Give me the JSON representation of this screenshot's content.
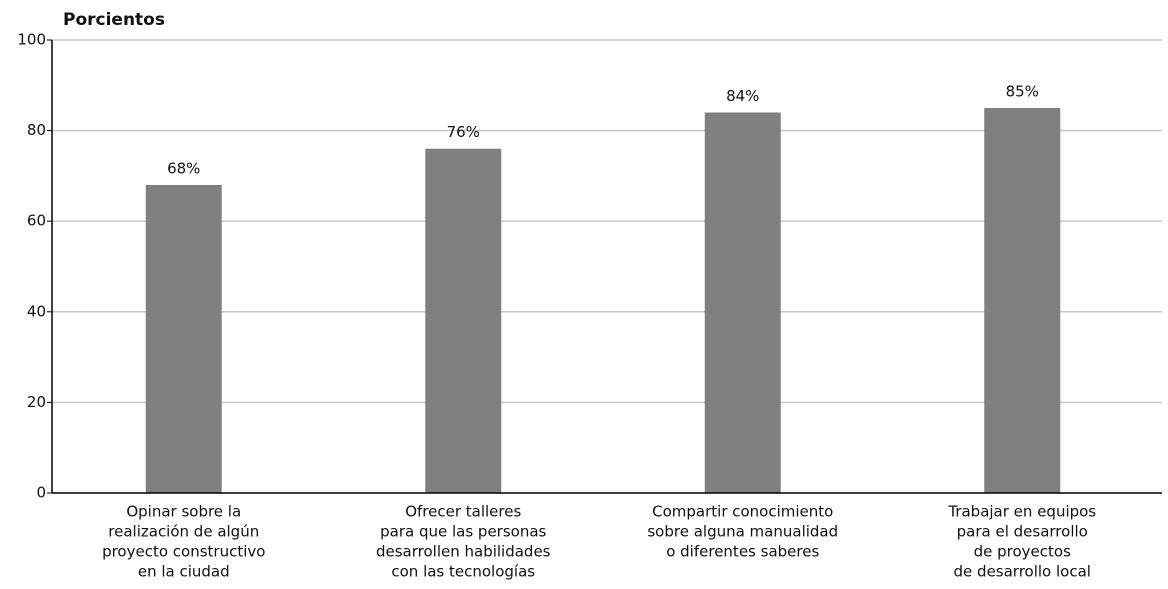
{
  "chart_data": {
    "type": "bar",
    "ylabel": "Porcientos",
    "categories": [
      [
        "Opinar sobre la",
        "realización de algún",
        "proyecto constructivo",
        "en la ciudad"
      ],
      [
        "Ofrecer talleres",
        "para que las personas",
        "desarrollen habilidades",
        "con las tecnologías"
      ],
      [
        "Compartir conocimiento",
        "sobre alguna manualidad",
        "o diferentes saberes"
      ],
      [
        "Trabajar en equipos",
        "para el desarrollo",
        "de proyectos",
        "de desarrollo local"
      ]
    ],
    "values": [
      68,
      76,
      84,
      85
    ],
    "value_labels": [
      "68%",
      "76%",
      "84%",
      "85%"
    ],
    "color": "#808080",
    "ylim": [
      0,
      100
    ],
    "yticks": [
      0,
      20,
      40,
      60,
      80,
      100
    ],
    "grid": true
  }
}
